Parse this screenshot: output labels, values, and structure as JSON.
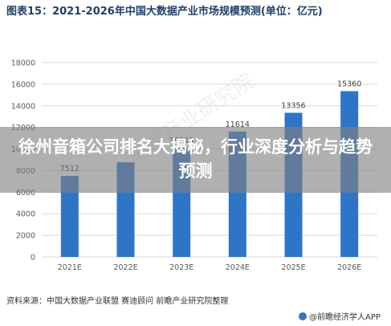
{
  "colors": {
    "bar": "#2e75c8",
    "grid": "#d9d9d9",
    "axis_text": "#595959",
    "label_text": "#404040",
    "title": "#1f3f6a"
  },
  "banner": {
    "text": "徐州音箱公司排名大揭秘，行业深度分析与趋势预测"
  },
  "footer": {
    "source": "资料来源：中国大数据产业联盟 赛迪顾问 前瞻产业研究院整理",
    "brand": "@前瞻经济学人APP",
    "brand_icon": "qianzhan-logo-icon"
  },
  "watermark": {
    "text": "前瞻产业研究院"
  },
  "chart_data": {
    "type": "bar",
    "title": "图表15：2021-2026年中国大数据产业市场规模预测(单位：亿元)",
    "xlabel": "",
    "ylabel": "",
    "categories": [
      "2021E",
      "2022E",
      "2023E",
      "2024E",
      "2025E",
      "2026E"
    ],
    "series": [
      {
        "values": [
          7512,
          8764,
          10099,
          11614,
          13356,
          15360
        ],
        "data_labels": [
          "7512",
          "",
          "10099",
          "11614",
          "13356",
          "15360"
        ]
      }
    ],
    "ylim": [
      0,
      18000
    ],
    "yticks": [
      0,
      2000,
      4000,
      6000,
      8000,
      10000,
      12000,
      14000,
      16000,
      18000
    ],
    "ytick_labels": [
      "0",
      "2000",
      "4000",
      "6000",
      "8000",
      "10000",
      "12000",
      "14000",
      "16000",
      "18000"
    ],
    "grid": true,
    "legend": "none"
  }
}
